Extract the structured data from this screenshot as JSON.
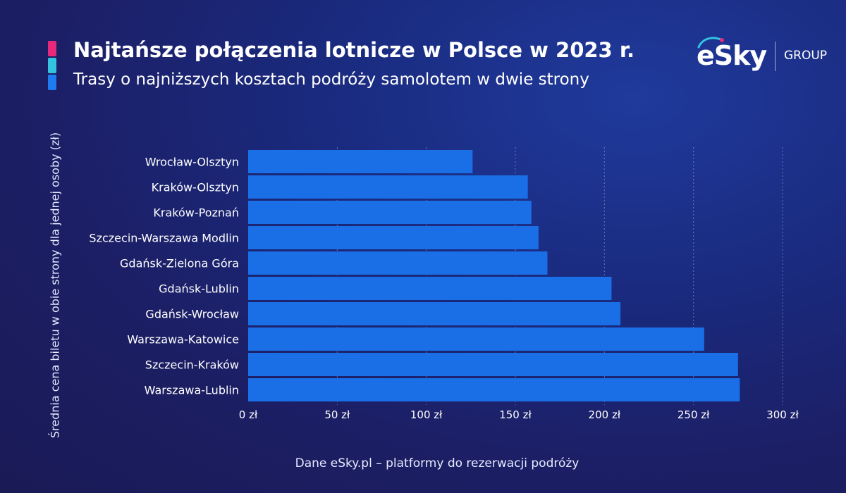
{
  "header": {
    "title": "Najtańsze połączenia lotnicze w Polsce w 2023 r.",
    "subtitle": "Trasy o najniższych kosztach podróży samolotem w dwie strony",
    "accent_colors": [
      "#e8287a",
      "#34c3e0",
      "#1f7bf0"
    ]
  },
  "logo": {
    "brand": "eSky",
    "group": "GROUP"
  },
  "footer": {
    "source": "Dane eSky.pl – platformy do rezerwacji podróży"
  },
  "chart_data": {
    "type": "bar",
    "orientation": "horizontal",
    "categories": [
      "Wrocław-Olsztyn",
      "Kraków-Olsztyn",
      "Kraków-Poznań",
      "Szczecin-Warszawa Modlin",
      "Gdańsk-Zielona Góra",
      "Gdańsk-Lublin",
      "Gdańsk-Wrocław",
      "Warszawa-Katowice",
      "Szczecin-Kraków",
      "Warszawa-Lublin"
    ],
    "values": [
      126,
      157,
      159,
      163,
      168,
      204,
      209,
      256,
      275,
      276
    ],
    "xlim": [
      0,
      300
    ],
    "xticks": [
      0,
      50,
      100,
      150,
      200,
      250,
      300
    ],
    "xtick_labels": [
      "0 zł",
      "50 zł",
      "100 zł",
      "150 zł",
      "200 zł",
      "250 zł",
      "300 zł"
    ],
    "ylabel": "Średnia cena biletu w obie strony dla jednej osoby (zł)",
    "bar_color": "#1a6ee6",
    "grid": "vertical dashed"
  }
}
